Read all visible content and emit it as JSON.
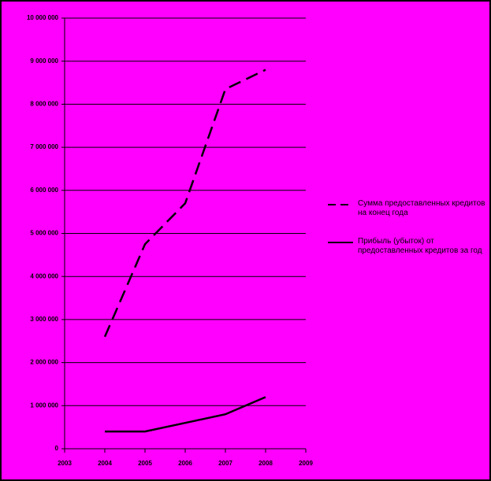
{
  "chart_data": {
    "type": "line",
    "x": [
      2004,
      2005,
      2006,
      2007,
      2008
    ],
    "series": [
      {
        "name": "Сумма предоставленных кредитов на конец года",
        "color": "#000000",
        "dash": true,
        "values": [
          2600000,
          4750000,
          5700000,
          8350000,
          8800000
        ]
      },
      {
        "name": "Прибыль (убыток) от предоставленных кредитов за год",
        "color": "#000000",
        "dash": false,
        "values": [
          400000,
          400000,
          600000,
          800000,
          1200000
        ]
      }
    ],
    "xlim": [
      2003,
      2009
    ],
    "xticks": [
      2003,
      2004,
      2005,
      2006,
      2007,
      2008,
      2009
    ],
    "ylim": [
      0,
      10000000
    ],
    "yticks": [
      0,
      {
        "value": 1000000,
        "label": "1 000 000"
      },
      {
        "value": 2000000,
        "label": "2 000 000"
      },
      {
        "value": 3000000,
        "label": "3 000 000"
      },
      {
        "value": 4000000,
        "label": "4 000 000"
      },
      {
        "value": 5000000,
        "label": "5 000 000"
      },
      {
        "value": 6000000,
        "label": "6 000 000"
      },
      {
        "value": 7000000,
        "label": "7 000 000"
      },
      {
        "value": 8000000,
        "label": "8 000 000"
      },
      {
        "value": 9000000,
        "label": "9 000 000"
      },
      {
        "value": 10000000,
        "label": "10 000 000"
      }
    ],
    "grid": true,
    "legend": "right"
  }
}
